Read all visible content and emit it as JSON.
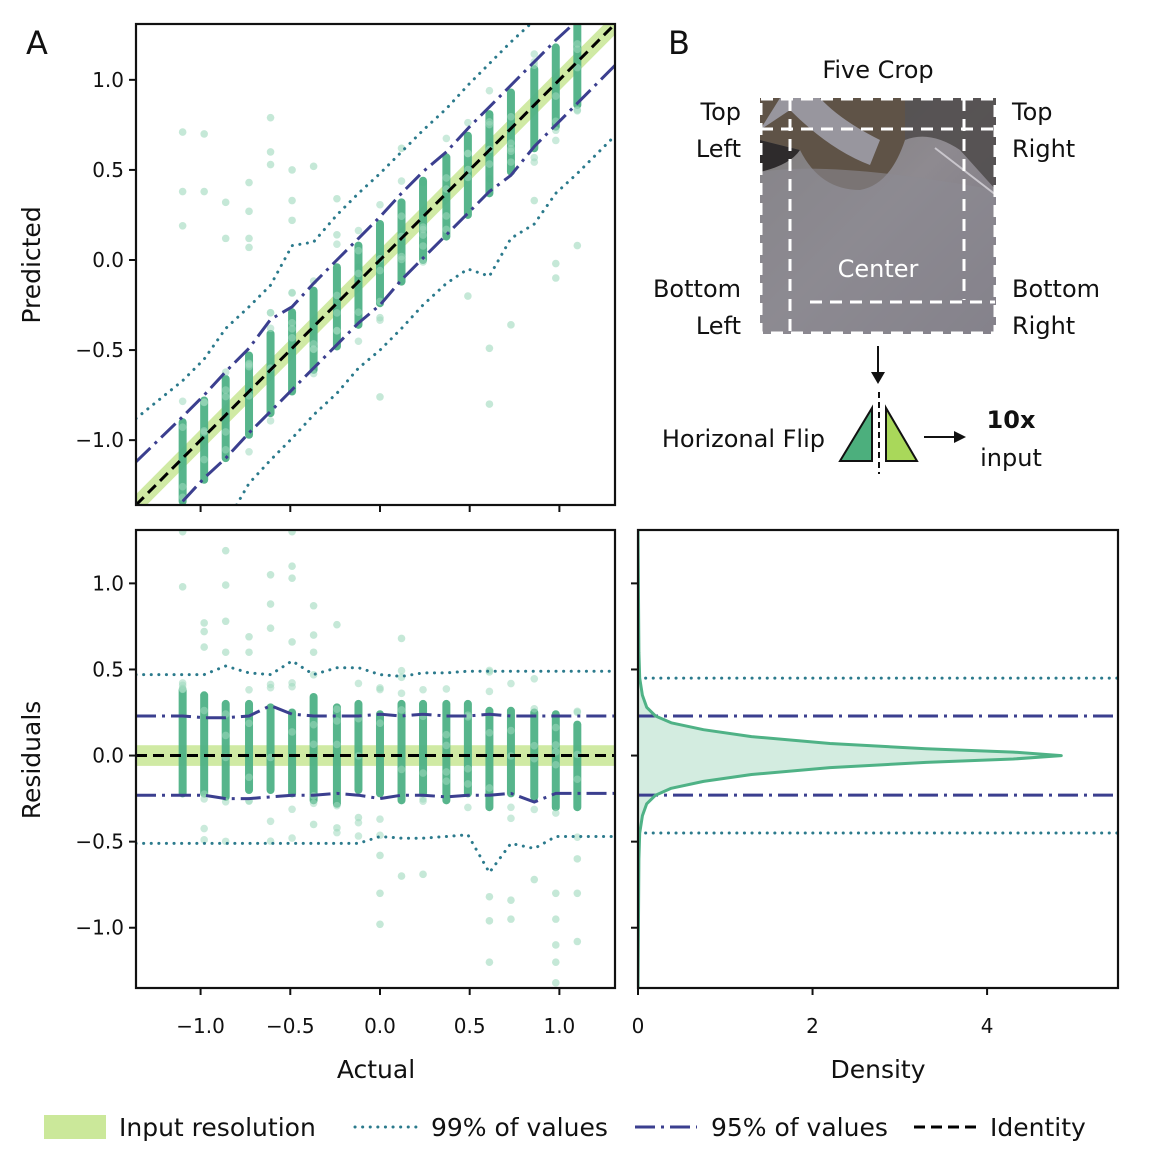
{
  "figure": {
    "panel_labels": {
      "a": "A",
      "b": "B"
    },
    "colors": {
      "scatter": "#4fb286",
      "scatter_light": "#9fd8bd",
      "input_resolution": "#cbe89a",
      "p99": "#2b7a8c",
      "p95": "#3b3f8f",
      "identity": "#000000",
      "density_fill": "#d3ece0",
      "density_line": "#4fb286",
      "tri_left": "#4caf7d",
      "tri_right": "#a9d85a"
    }
  },
  "diagram": {
    "title": "Five Crop",
    "top_left": [
      "Top",
      "Left"
    ],
    "top_right": [
      "Top",
      "Right"
    ],
    "bottom_left": [
      "Bottom",
      "Left"
    ],
    "bottom_right": [
      "Bottom",
      "Right"
    ],
    "center": "Center",
    "flip_label": "Horizonal Flip",
    "result_bold": "10x",
    "result_text": "input"
  },
  "legend": [
    {
      "key": "input_resolution",
      "label": "Input resolution",
      "style": "band"
    },
    {
      "key": "p99",
      "label": "99% of values",
      "style": "dotted"
    },
    {
      "key": "p95",
      "label": "95% of values",
      "style": "dashdot"
    },
    {
      "key": "identity",
      "label": "Identity",
      "style": "dashed"
    }
  ],
  "chart_data": [
    {
      "id": "predicted_vs_actual",
      "type": "scatter",
      "xlabel": "",
      "ylabel": "Predicted",
      "xlim": [
        -1.36,
        1.31
      ],
      "ylim": [
        -1.36,
        1.31
      ],
      "xticks": [
        -1.0,
        -0.5,
        0.0,
        0.5,
        1.0
      ],
      "xtick_labels": [
        "",
        "",
        "",
        "",
        ""
      ],
      "yticks": [
        1.0,
        0.5,
        0.0,
        -0.5,
        -1.0
      ],
      "ytick_labels": [
        "1.0",
        "0.5",
        "0.0",
        "−0.5",
        "−1.0"
      ],
      "columns_x": [
        -1.1,
        -0.98,
        -0.86,
        -0.73,
        -0.61,
        -0.49,
        -0.37,
        -0.24,
        -0.12,
        0.0,
        0.12,
        0.24,
        0.37,
        0.49,
        0.61,
        0.73,
        0.86,
        0.98,
        1.1
      ],
      "column_dense_halfwidth": 0.2,
      "input_resolution_halfwidth": 0.06,
      "identity_line": [
        [
          -1.36,
          -1.36
        ],
        [
          1.31,
          1.31
        ]
      ],
      "p95_upper": [
        [
          -1.36,
          -1.12
        ],
        [
          -1.1,
          -0.87
        ],
        [
          -0.98,
          -0.75
        ],
        [
          -0.86,
          -0.62
        ],
        [
          -0.73,
          -0.49
        ],
        [
          -0.61,
          -0.33
        ],
        [
          -0.49,
          -0.26
        ],
        [
          -0.37,
          -0.13
        ],
        [
          -0.24,
          0.0
        ],
        [
          -0.12,
          0.12
        ],
        [
          0.0,
          0.24
        ],
        [
          0.12,
          0.37
        ],
        [
          0.24,
          0.49
        ],
        [
          0.37,
          0.6
        ],
        [
          0.49,
          0.73
        ],
        [
          0.61,
          0.85
        ],
        [
          0.73,
          0.97
        ],
        [
          0.86,
          1.1
        ],
        [
          0.98,
          1.22
        ],
        [
          1.1,
          1.33
        ]
      ],
      "p95_lower": [
        [
          -1.1,
          -1.34
        ],
        [
          -0.98,
          -1.21
        ],
        [
          -0.86,
          -1.1
        ],
        [
          -0.73,
          -0.96
        ],
        [
          -0.61,
          -0.84
        ],
        [
          -0.49,
          -0.72
        ],
        [
          -0.37,
          -0.6
        ],
        [
          -0.24,
          -0.47
        ],
        [
          -0.12,
          -0.35
        ],
        [
          0.0,
          -0.25
        ],
        [
          0.12,
          -0.11
        ],
        [
          0.24,
          0.01
        ],
        [
          0.37,
          0.14
        ],
        [
          0.49,
          0.26
        ],
        [
          0.61,
          0.38
        ],
        [
          0.73,
          0.47
        ],
        [
          0.86,
          0.63
        ],
        [
          0.98,
          0.75
        ],
        [
          1.1,
          0.87
        ],
        [
          1.31,
          1.08
        ]
      ],
      "p99_upper": [
        [
          -1.36,
          -0.88
        ],
        [
          -1.1,
          -0.67
        ],
        [
          -0.98,
          -0.55
        ],
        [
          -0.86,
          -0.38
        ],
        [
          -0.73,
          -0.26
        ],
        [
          -0.61,
          -0.14
        ],
        [
          -0.49,
          0.08
        ],
        [
          -0.37,
          0.1
        ],
        [
          -0.24,
          0.25
        ],
        [
          -0.12,
          0.37
        ],
        [
          0.0,
          0.48
        ],
        [
          0.12,
          0.6
        ],
        [
          0.24,
          0.72
        ],
        [
          0.37,
          0.84
        ],
        [
          0.49,
          0.97
        ],
        [
          0.61,
          1.09
        ],
        [
          0.73,
          1.21
        ],
        [
          0.86,
          1.33
        ]
      ],
      "p99_lower": [
        [
          -0.8,
          -1.36
        ],
        [
          -0.73,
          -1.24
        ],
        [
          -0.61,
          -1.11
        ],
        [
          -0.49,
          -0.99
        ],
        [
          -0.37,
          -0.86
        ],
        [
          -0.24,
          -0.74
        ],
        [
          -0.12,
          -0.6
        ],
        [
          0.0,
          -0.5
        ],
        [
          0.12,
          -0.38
        ],
        [
          0.24,
          -0.25
        ],
        [
          0.37,
          -0.13
        ],
        [
          0.49,
          -0.05
        ],
        [
          0.61,
          -0.09
        ],
        [
          0.73,
          0.12
        ],
        [
          0.86,
          0.2
        ],
        [
          0.98,
          0.37
        ],
        [
          1.1,
          0.48
        ],
        [
          1.31,
          0.69
        ]
      ],
      "outliers": [
        [
          -1.1,
          0.71
        ],
        [
          -0.98,
          0.7
        ],
        [
          -1.1,
          0.38
        ],
        [
          -0.98,
          0.38
        ],
        [
          -1.1,
          0.19
        ],
        [
          -0.86,
          0.32
        ],
        [
          -0.86,
          0.12
        ],
        [
          -0.73,
          0.43
        ],
        [
          -0.73,
          0.27
        ],
        [
          -0.73,
          0.12
        ],
        [
          -0.73,
          0.07
        ],
        [
          -0.61,
          0.79
        ],
        [
          -0.61,
          0.6
        ],
        [
          -0.61,
          0.53
        ],
        [
          -0.49,
          0.5
        ],
        [
          -0.49,
          0.33
        ],
        [
          -0.49,
          0.22
        ],
        [
          -0.37,
          0.52
        ],
        [
          -0.37,
          -0.47
        ],
        [
          -0.24,
          0.34
        ],
        [
          -0.24,
          0.14
        ],
        [
          -0.12,
          -0.04
        ],
        [
          0.0,
          -0.32
        ],
        [
          0.0,
          -0.76
        ],
        [
          0.12,
          0.62
        ],
        [
          0.24,
          0.43
        ],
        [
          0.37,
          0.26
        ],
        [
          0.49,
          -0.2
        ],
        [
          0.61,
          0.58
        ],
        [
          0.61,
          0.45
        ],
        [
          0.61,
          -0.49
        ],
        [
          0.61,
          -0.8
        ],
        [
          0.73,
          -0.36
        ],
        [
          0.98,
          -0.1
        ],
        [
          0.98,
          -0.02
        ],
        [
          0.86,
          0.33
        ],
        [
          1.1,
          0.08
        ]
      ]
    },
    {
      "id": "residuals_vs_actual",
      "type": "scatter",
      "xlabel": "Actual",
      "ylabel": "Residuals",
      "xlim": [
        -1.36,
        1.31
      ],
      "ylim": [
        -1.35,
        1.31
      ],
      "xticks": [
        -1.0,
        -0.5,
        0.0,
        0.5,
        1.0
      ],
      "xtick_labels": [
        "−1.0",
        "−0.5",
        "0.0",
        "0.5",
        "1.0"
      ],
      "yticks": [
        1.0,
        0.5,
        0.0,
        -0.5,
        -1.0
      ],
      "ytick_labels": [
        "1.0",
        "0.5",
        "0.0",
        "−0.5",
        "−1.0"
      ],
      "columns_x": [
        -1.1,
        -0.98,
        -0.86,
        -0.73,
        -0.61,
        -0.49,
        -0.37,
        -0.24,
        -0.12,
        0.0,
        0.12,
        0.24,
        0.37,
        0.49,
        0.61,
        0.73,
        0.86,
        0.98,
        1.1
      ],
      "column_dense_range": [
        [
          -0.22,
          0.38
        ],
        [
          -0.22,
          0.35
        ],
        [
          -0.24,
          0.3
        ],
        [
          -0.2,
          0.3
        ],
        [
          -0.2,
          0.28
        ],
        [
          -0.22,
          0.25
        ],
        [
          -0.26,
          0.34
        ],
        [
          -0.28,
          0.28
        ],
        [
          -0.2,
          0.3
        ],
        [
          -0.22,
          0.24
        ],
        [
          -0.26,
          0.3
        ],
        [
          -0.22,
          0.3
        ],
        [
          -0.26,
          0.3
        ],
        [
          -0.22,
          0.3
        ],
        [
          -0.3,
          0.26
        ],
        [
          -0.22,
          0.26
        ],
        [
          -0.24,
          0.25
        ],
        [
          -0.3,
          0.24
        ],
        [
          -0.3,
          0.18
        ]
      ],
      "input_resolution_halfwidth": 0.06,
      "identity_y": 0.0,
      "p95_upper": [
        [
          -1.36,
          0.23
        ],
        [
          -1.1,
          0.23
        ],
        [
          -0.98,
          0.22
        ],
        [
          -0.86,
          0.22
        ],
        [
          -0.73,
          0.23
        ],
        [
          -0.61,
          0.29
        ],
        [
          -0.49,
          0.24
        ],
        [
          -0.37,
          0.23
        ],
        [
          -0.24,
          0.23
        ],
        [
          -0.12,
          0.23
        ],
        [
          0.0,
          0.24
        ],
        [
          0.12,
          0.23
        ],
        [
          0.24,
          0.24
        ],
        [
          0.37,
          0.23
        ],
        [
          0.49,
          0.23
        ],
        [
          0.61,
          0.24
        ],
        [
          0.73,
          0.23
        ],
        [
          0.86,
          0.23
        ],
        [
          0.98,
          0.23
        ],
        [
          1.31,
          0.23
        ]
      ],
      "p95_lower": [
        [
          -1.36,
          -0.23
        ],
        [
          -1.1,
          -0.23
        ],
        [
          -0.98,
          -0.23
        ],
        [
          -0.86,
          -0.25
        ],
        [
          -0.73,
          -0.25
        ],
        [
          -0.61,
          -0.24
        ],
        [
          -0.49,
          -0.23
        ],
        [
          -0.37,
          -0.23
        ],
        [
          -0.24,
          -0.22
        ],
        [
          -0.12,
          -0.23
        ],
        [
          0.0,
          -0.25
        ],
        [
          0.12,
          -0.23
        ],
        [
          0.24,
          -0.23
        ],
        [
          0.37,
          -0.24
        ],
        [
          0.49,
          -0.23
        ],
        [
          0.61,
          -0.23
        ],
        [
          0.73,
          -0.22
        ],
        [
          0.86,
          -0.27
        ],
        [
          0.98,
          -0.22
        ],
        [
          1.31,
          -0.22
        ]
      ],
      "p99_upper": [
        [
          -1.36,
          0.47
        ],
        [
          -1.1,
          0.47
        ],
        [
          -0.98,
          0.47
        ],
        [
          -0.86,
          0.52
        ],
        [
          -0.73,
          0.48
        ],
        [
          -0.61,
          0.47
        ],
        [
          -0.49,
          0.55
        ],
        [
          -0.37,
          0.47
        ],
        [
          -0.24,
          0.51
        ],
        [
          -0.12,
          0.51
        ],
        [
          0.0,
          0.47
        ],
        [
          0.12,
          0.46
        ],
        [
          0.24,
          0.48
        ],
        [
          0.37,
          0.48
        ],
        [
          0.49,
          0.49
        ],
        [
          1.31,
          0.49
        ]
      ],
      "p99_lower": [
        [
          -1.36,
          -0.51
        ],
        [
          -0.12,
          -0.51
        ],
        [
          0.0,
          -0.47
        ],
        [
          0.12,
          -0.48
        ],
        [
          0.24,
          -0.48
        ],
        [
          0.37,
          -0.47
        ],
        [
          0.49,
          -0.46
        ],
        [
          0.61,
          -0.68
        ],
        [
          0.73,
          -0.51
        ],
        [
          0.86,
          -0.54
        ],
        [
          0.98,
          -0.47
        ],
        [
          1.31,
          -0.47
        ]
      ],
      "outliers": [
        [
          -1.1,
          1.3
        ],
        [
          -1.1,
          0.98
        ],
        [
          -0.98,
          0.77
        ],
        [
          -0.98,
          0.72
        ],
        [
          -0.98,
          0.63
        ],
        [
          -0.86,
          1.19
        ],
        [
          -0.86,
          0.99
        ],
        [
          -0.86,
          0.78
        ],
        [
          -0.86,
          0.6
        ],
        [
          -0.73,
          0.69
        ],
        [
          -0.73,
          0.6
        ],
        [
          -0.61,
          1.05
        ],
        [
          -0.61,
          0.88
        ],
        [
          -0.61,
          0.74
        ],
        [
          -0.49,
          1.3
        ],
        [
          -0.49,
          1.1
        ],
        [
          -0.49,
          1.03
        ],
        [
          -0.49,
          0.66
        ],
        [
          -0.37,
          0.87
        ],
        [
          -0.37,
          0.7
        ],
        [
          -0.37,
          0.6
        ],
        [
          -0.24,
          0.76
        ],
        [
          -0.37,
          -0.4
        ],
        [
          -0.24,
          -0.42
        ],
        [
          -0.12,
          -0.36
        ],
        [
          0.0,
          -0.58
        ],
        [
          0.0,
          -0.8
        ],
        [
          0.0,
          -0.98
        ],
        [
          0.12,
          0.68
        ],
        [
          0.12,
          -0.7
        ],
        [
          0.24,
          -0.69
        ],
        [
          0.61,
          -0.82
        ],
        [
          0.61,
          -0.96
        ],
        [
          0.61,
          -1.2
        ],
        [
          0.73,
          -0.84
        ],
        [
          0.73,
          -0.95
        ],
        [
          0.86,
          -0.72
        ],
        [
          0.98,
          -0.8
        ],
        [
          0.98,
          -0.95
        ],
        [
          0.98,
          -1.1
        ],
        [
          0.98,
          -1.2
        ],
        [
          0.98,
          -1.32
        ],
        [
          1.1,
          -0.6
        ],
        [
          1.1,
          -0.8
        ],
        [
          1.1,
          -1.08
        ]
      ]
    },
    {
      "id": "residual_density",
      "type": "area",
      "xlabel": "Density",
      "ylabel": "",
      "xlim": [
        0,
        5.5
      ],
      "ylim": [
        -1.35,
        1.31
      ],
      "xticks": [
        0,
        2,
        4
      ],
      "xtick_labels": [
        "0",
        "2",
        "4"
      ],
      "yticks": [
        1.0,
        0.5,
        0.0,
        -0.5,
        -1.0
      ],
      "density_peak": 4.85,
      "density_peak_at": 0.0,
      "density_curve": [
        [
          -1.35,
          0.0
        ],
        [
          -0.6,
          0.01
        ],
        [
          -0.45,
          0.02
        ],
        [
          -0.35,
          0.05
        ],
        [
          -0.28,
          0.1
        ],
        [
          -0.23,
          0.2
        ],
        [
          -0.19,
          0.38
        ],
        [
          -0.15,
          0.75
        ],
        [
          -0.11,
          1.3
        ],
        [
          -0.07,
          2.2
        ],
        [
          -0.04,
          3.3
        ],
        [
          -0.02,
          4.3
        ],
        [
          0.0,
          4.85
        ],
        [
          0.02,
          4.3
        ],
        [
          0.04,
          3.3
        ],
        [
          0.07,
          2.2
        ],
        [
          0.11,
          1.3
        ],
        [
          0.15,
          0.75
        ],
        [
          0.19,
          0.38
        ],
        [
          0.23,
          0.2
        ],
        [
          0.28,
          0.1
        ],
        [
          0.35,
          0.05
        ],
        [
          0.45,
          0.02
        ],
        [
          0.6,
          0.01
        ],
        [
          1.31,
          0.0
        ]
      ],
      "p95_lines": [
        0.23,
        -0.23
      ],
      "p99_lines": [
        0.45,
        -0.45
      ]
    }
  ]
}
